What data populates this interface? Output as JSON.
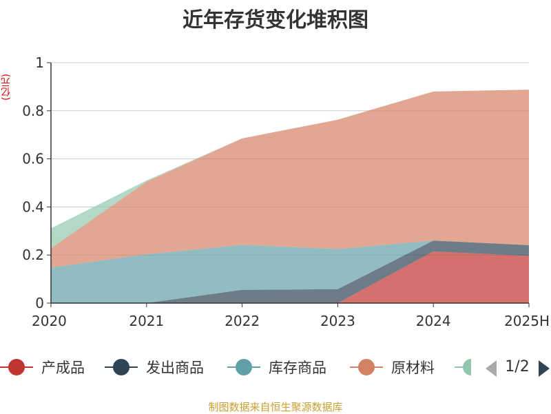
{
  "chart_data": {
    "type": "area",
    "stacked": true,
    "title": "近年存货变化堆积图",
    "ylabel": "(亿元)",
    "ylim": [
      0,
      1
    ],
    "yticks": [
      "0",
      "0.2",
      "0.4",
      "0.6",
      "0.8",
      "1"
    ],
    "categories": [
      "2020",
      "2021",
      "2022",
      "2023",
      "2024",
      "2025H"
    ],
    "grid": true,
    "series": [
      {
        "name": "产成品",
        "color": "#c23531",
        "values": [
          0,
          0,
          0,
          0,
          0.215,
          0.196
        ]
      },
      {
        "name": "发出商品",
        "color": "#2f4554",
        "values": [
          0,
          0,
          0.055,
          0.058,
          0.045,
          0.045
        ]
      },
      {
        "name": "库存商品",
        "color": "#61a0a8",
        "values": [
          0.148,
          0.203,
          0.187,
          0.167,
          0,
          0
        ]
      },
      {
        "name": "原材料",
        "color": "#d48265",
        "values": [
          0.08,
          0.302,
          0.443,
          0.538,
          0.62,
          0.647
        ]
      },
      {
        "name": "",
        "color": "#91c7ae",
        "values": [
          0.083,
          0.005,
          0,
          0,
          0,
          0
        ]
      }
    ],
    "legend": {
      "position": "bottom",
      "page": "1/2"
    }
  },
  "source": "制图数据来自恒生聚源数据库"
}
